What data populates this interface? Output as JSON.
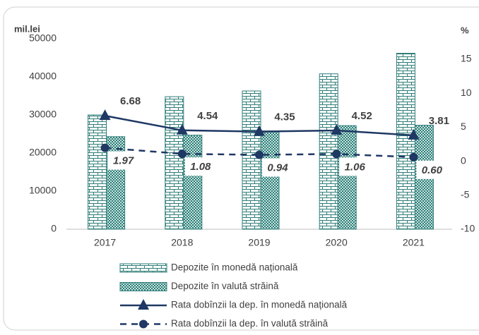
{
  "chart_data": {
    "type": "bar",
    "y_label": "mil.lei",
    "y2_label": "%",
    "categories": [
      "2017",
      "2018",
      "2019",
      "2020",
      "2021"
    ],
    "series": [
      {
        "name": "Depozite în monedă națională",
        "type": "bar",
        "color": "#2e7d78",
        "values": [
          30000,
          34800,
          36300,
          40800,
          46200
        ]
      },
      {
        "name": "Depozite în valută străină",
        "type": "bar",
        "color": "#2e7d78",
        "values": [
          24300,
          24700,
          25800,
          27200,
          27300
        ]
      },
      {
        "name": "Rata dobînzii la dep. în monedă națională",
        "type": "line",
        "axis": "y2",
        "marker": "triangle",
        "dash": false,
        "color": "#1f3864",
        "values": [
          6.68,
          4.54,
          4.35,
          4.52,
          3.81
        ],
        "value_labels": [
          "6.68",
          "4.54",
          "4.35",
          "4.52",
          "3.81"
        ]
      },
      {
        "name": "Rata dobînzii la dep. în valută străină",
        "type": "line",
        "axis": "y2",
        "marker": "circle",
        "dash": true,
        "color": "#1f3864",
        "values": [
          1.97,
          1.08,
          0.94,
          1.06,
          0.6
        ],
        "value_labels": [
          "1.97",
          "1.08",
          "0.94",
          "1.06",
          "0.60"
        ]
      }
    ],
    "ylim": [
      0,
      50000
    ],
    "yticks": [
      0,
      10000,
      20000,
      30000,
      40000,
      50000
    ],
    "y2lim": [
      -10,
      18
    ],
    "y2ticks": [
      -10,
      -5,
      0,
      5,
      10,
      15
    ]
  }
}
